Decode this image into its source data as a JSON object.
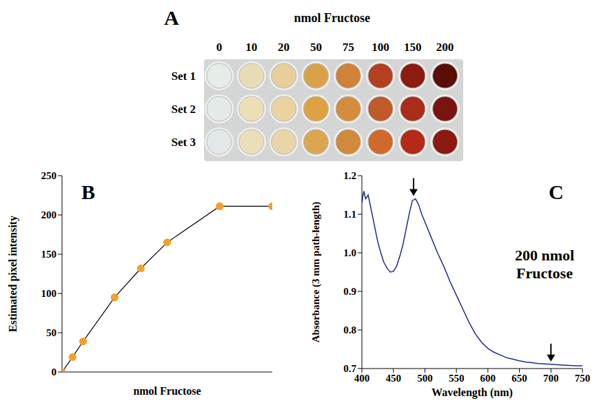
{
  "chart_data": [
    {
      "type": "plate",
      "panel": "A",
      "title": "nmol Fructose",
      "categories": [
        "0",
        "10",
        "20",
        "50",
        "75",
        "100",
        "150",
        "200"
      ],
      "rows": [
        "Set 1",
        "Set 2",
        "Set 3"
      ],
      "colors": [
        [
          "#e6ece8",
          "#e8dcb8",
          "#e6cf9a",
          "#d9a24a",
          "#cf8238",
          "#b4401f",
          "#8c1c10",
          "#5a0e08"
        ],
        [
          "#e4eae8",
          "#ecdfb8",
          "#ebd3a0",
          "#dfa243",
          "#d58c3d",
          "#c05a2a",
          "#ab2c18",
          "#7a1410"
        ],
        [
          "#e2e8ea",
          "#eadfba",
          "#e9d6a8",
          "#dba552",
          "#d08a3a",
          "#cf6a2c",
          "#b52a16",
          "#8a1a12"
        ]
      ]
    },
    {
      "type": "line",
      "panel": "B",
      "x_label": "nmol Fructose",
      "y_label": "Estimated pixel intensity",
      "x": [
        0,
        10,
        20,
        50,
        75,
        100,
        150,
        200
      ],
      "values": [
        0,
        19,
        39,
        95,
        132,
        165,
        211,
        211
      ],
      "color": "#f5a02a",
      "marker": "circle",
      "xlim": [
        0,
        200
      ],
      "xticks": [
        0,
        50,
        100,
        150,
        200
      ],
      "ylim": [
        0,
        250
      ],
      "yticks": [
        0,
        50,
        100,
        150,
        200,
        250
      ],
      "tick_labels": "y",
      "grid": false
    },
    {
      "type": "line",
      "panel": "C",
      "x_label": "Wavelength  (nm)",
      "y_label": "Absorbance (3 mm path-length)",
      "annotation": [
        "200 nmol",
        "Fructose"
      ],
      "arrows": [
        {
          "x": 482,
          "y": 1.14
        },
        {
          "x": 700,
          "y": 0.711
        }
      ],
      "x": [
        400,
        403,
        406,
        410,
        415,
        420,
        425,
        430,
        435,
        440,
        445,
        450,
        455,
        460,
        465,
        470,
        475,
        480,
        485,
        490,
        495,
        500,
        510,
        520,
        530,
        540,
        550,
        560,
        570,
        580,
        590,
        600,
        610,
        620,
        630,
        640,
        650,
        660,
        670,
        680,
        690,
        700,
        710,
        720,
        730,
        740,
        750
      ],
      "values": [
        1.13,
        1.16,
        1.14,
        1.15,
        1.11,
        1.07,
        1.03,
        1.0,
        0.975,
        0.96,
        0.95,
        0.952,
        0.965,
        0.99,
        1.02,
        1.06,
        1.1,
        1.135,
        1.14,
        1.125,
        1.1,
        1.08,
        1.04,
        1.0,
        0.965,
        0.925,
        0.89,
        0.855,
        0.82,
        0.79,
        0.768,
        0.752,
        0.742,
        0.735,
        0.728,
        0.724,
        0.72,
        0.717,
        0.715,
        0.713,
        0.712,
        0.711,
        0.71,
        0.709,
        0.708,
        0.707,
        0.707
      ],
      "color": "#1f2a8a",
      "line_style": "solid",
      "xlim": [
        400,
        750
      ],
      "xticks": [
        400,
        450,
        500,
        550,
        600,
        650,
        700,
        750
      ],
      "ylim": [
        0.7,
        1.2
      ],
      "yticks": [
        0.7,
        0.8,
        0.9,
        {
          "value": 1,
          "label": "1.0"
        },
        1.1,
        1.2
      ],
      "grid": false
    }
  ]
}
